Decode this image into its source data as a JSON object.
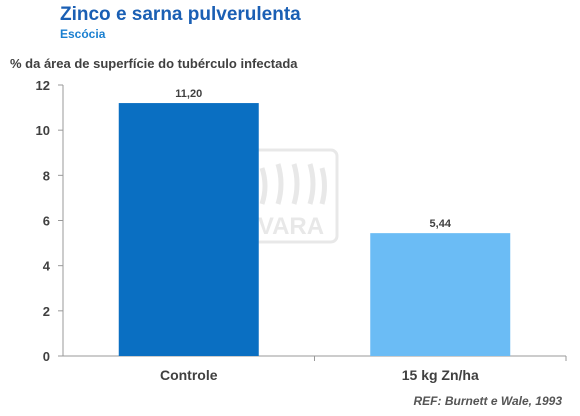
{
  "header": {
    "title": "Zinco e sarna pulverulenta",
    "subtitle": "Escócia"
  },
  "reference": "REF: Burnett e Wale, 1993",
  "watermark": {
    "text": "VARA",
    "icon": "vara-logo-icon"
  },
  "colors": {
    "title": "#1a5fb4",
    "subtitle": "#1a7fd0",
    "bar_dark": "#0a6fc2",
    "bar_light": "#6bbcf5",
    "axis": "#999999"
  },
  "chart_data": {
    "type": "bar",
    "title": "Zinco e sarna pulverulenta",
    "subtitle": "Escócia",
    "ylabel": "% da área de superfície do tubérculo infectada",
    "xlabel": "",
    "categories": [
      "Controle",
      "15 kg Zn/ha"
    ],
    "values": [
      11.2,
      5.44
    ],
    "data_labels": [
      "11,20",
      "5,44"
    ],
    "ylim": [
      0,
      12
    ],
    "yticks": [
      "0",
      "2",
      "4",
      "6",
      "8",
      "10",
      "12"
    ],
    "grid": false,
    "legend": "none"
  }
}
